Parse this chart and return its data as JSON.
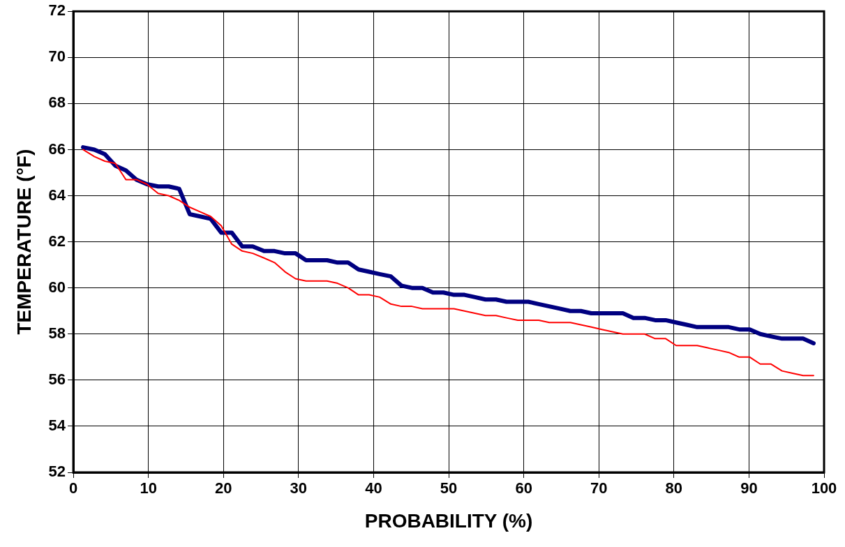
{
  "chart_data": {
    "type": "line",
    "xlabel": "PROBABILITY (%)",
    "ylabel": "TEMPERATURE (°F)",
    "x": [
      1.3,
      2.8,
      4.2,
      5.6,
      7,
      8.4,
      9.8,
      11.3,
      12.7,
      14.1,
      15.5,
      16.9,
      18.3,
      19.7,
      21.1,
      22.5,
      23.9,
      25.4,
      26.8,
      28.2,
      29.6,
      31,
      32.4,
      33.8,
      35.2,
      36.6,
      38,
      39.4,
      40.8,
      42.3,
      43.7,
      45.1,
      46.5,
      47.9,
      49.3,
      50.7,
      52.1,
      53.5,
      54.9,
      56.3,
      57.7,
      59.2,
      60.6,
      62,
      63.4,
      64.8,
      66.2,
      67.6,
      69,
      70.4,
      71.8,
      73.2,
      74.6,
      76.1,
      77.5,
      78.9,
      80.3,
      81.7,
      83.1,
      84.5,
      85.9,
      87.3,
      88.7,
      90.1,
      91.5,
      92.9,
      94.4,
      95.8,
      97.2,
      98.6
    ],
    "series": [
      {
        "color": "#000080",
        "values": [
          66.1,
          66.0,
          65.8,
          65.3,
          65.1,
          64.7,
          64.5,
          64.4,
          64.4,
          64.3,
          63.2,
          63.1,
          63.0,
          62.4,
          62.4,
          61.8,
          61.8,
          61.6,
          61.6,
          61.5,
          61.5,
          61.2,
          61.2,
          61.2,
          61.1,
          61.1,
          60.8,
          60.7,
          60.6,
          60.5,
          60.1,
          60.0,
          60.0,
          59.8,
          59.8,
          59.7,
          59.7,
          59.6,
          59.5,
          59.5,
          59.4,
          59.4,
          59.4,
          59.3,
          59.2,
          59.1,
          59.0,
          59.0,
          58.9,
          58.9,
          58.9,
          58.9,
          58.7,
          58.7,
          58.6,
          58.6,
          58.5,
          58.4,
          58.3,
          58.3,
          58.3,
          58.3,
          58.2,
          58.2,
          58.0,
          57.9,
          57.8,
          57.8,
          57.8,
          57.6
        ]
      },
      {
        "color": "#ff0000",
        "values": [
          66.0,
          65.7,
          65.5,
          65.4,
          64.7,
          64.7,
          64.5,
          64.1,
          64.0,
          63.8,
          63.5,
          63.3,
          63.1,
          62.7,
          61.9,
          61.6,
          61.5,
          61.3,
          61.1,
          60.7,
          60.4,
          60.3,
          60.3,
          60.3,
          60.2,
          60.0,
          59.7,
          59.7,
          59.6,
          59.3,
          59.2,
          59.2,
          59.1,
          59.1,
          59.1,
          59.1,
          59.0,
          58.9,
          58.8,
          58.8,
          58.7,
          58.6,
          58.6,
          58.6,
          58.5,
          58.5,
          58.5,
          58.4,
          58.3,
          58.2,
          58.1,
          58.0,
          58.0,
          58.0,
          57.8,
          57.8,
          57.5,
          57.5,
          57.5,
          57.4,
          57.3,
          57.2,
          57.0,
          57.0,
          56.7,
          56.7,
          56.4,
          56.3,
          56.2,
          56.2
        ]
      }
    ],
    "xlim": [
      0,
      100
    ],
    "xticks": [
      0,
      10,
      20,
      30,
      40,
      50,
      60,
      70,
      80,
      90,
      100
    ],
    "ylim": [
      52,
      72
    ],
    "yticks": [
      52,
      54,
      56,
      58,
      60,
      62,
      64,
      66,
      68,
      70,
      72
    ],
    "grid": true,
    "legend": false,
    "marker": "none",
    "line_style": "solid"
  }
}
